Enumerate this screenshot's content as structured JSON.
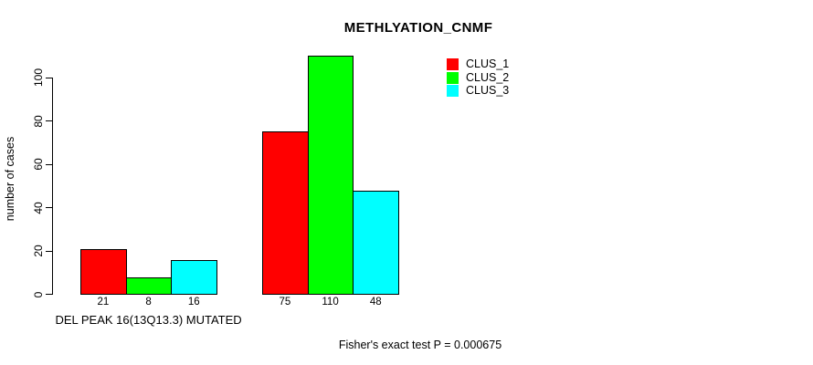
{
  "chart_data": {
    "type": "bar",
    "title": "METHLYATION_CNMF",
    "ylabel": "number of cases",
    "xlabel": "",
    "footer": "Fisher's exact test P = 0.000675",
    "categories": [
      "DEL PEAK 16(13Q13.3) MUTATED",
      ""
    ],
    "series": [
      {
        "name": "CLUS_1",
        "color": "#ff0000",
        "values": [
          21,
          75
        ]
      },
      {
        "name": "CLUS_2",
        "color": "#00ff00",
        "values": [
          8,
          110
        ]
      },
      {
        "name": "CLUS_3",
        "color": "#00ffff",
        "values": [
          16,
          48
        ]
      }
    ],
    "bar_value_labels": [
      [
        "21",
        "8",
        "16"
      ],
      [
        "75",
        "110",
        "48"
      ]
    ],
    "yticks": [
      0,
      20,
      40,
      60,
      80,
      100
    ],
    "ylim": [
      0,
      100
    ],
    "grid": false,
    "legend_position": "top-right",
    "axis_color": "#000000",
    "text_color": "#000000",
    "background": "#ffffff"
  }
}
